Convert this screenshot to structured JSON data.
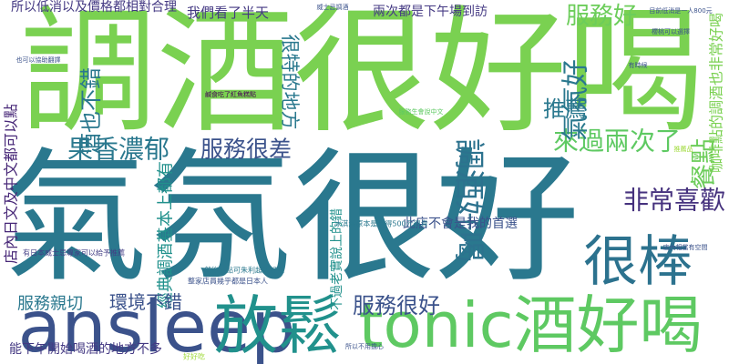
{
  "word_cloud": {
    "words": [
      "調酒很好喝",
      "氣氛很好",
      "ansleep",
      "放鬆",
      "tonic酒好喝",
      "很棒",
      "非常喜歡",
      "餐點",
      "來過兩次了",
      "推薦",
      "氣氛好",
      "服務好",
      "果香濃郁",
      "服務很差",
      "酒也不錯",
      "很特的地方",
      "調酒好喝",
      "經典調酒基本上都有",
      "服務親切",
      "環境不錯",
      "服務很好",
      "能下午開始喝酒的地方不多",
      "所以低消以及價格都相對合理",
      "我們看了半天",
      "兩次都是下午場到訪",
      "店內日文及中文都可以點",
      "咖啡點的調酒也非常好喝",
      "此店不會是我的首選",
      "不過老實說上的錯",
      "冰淇淋原本是覺得500元很貴",
      "有日本威士忌專家可以給予推薦",
      "然後宿點可朱利超級好吃",
      "整家店員幾乎都是日本人",
      "鹹食吃了紅魚糕點",
      "威士忌調酒",
      "目前低消是一人800元",
      "櫻桃可以選擇",
      "也可以協助翻譯",
      "服務生會說中文",
      "所以不用擔心",
      "有時候",
      "店內相當有空間",
      "推薦品",
      "好好吃"
    ]
  }
}
